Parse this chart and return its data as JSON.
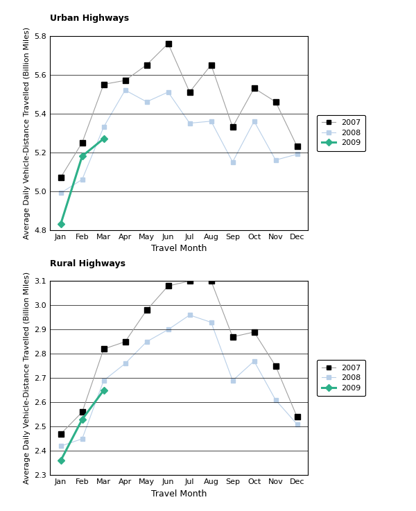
{
  "months": [
    "Jan",
    "Feb",
    "Mar",
    "Apr",
    "May",
    "Jun",
    "Jul",
    "Aug",
    "Sep",
    "Oct",
    "Nov",
    "Dec"
  ],
  "urban": {
    "ylabel": "Average Daily Vehicle-Distance Travelled (Billion Miles)",
    "xlabel": "Travel Month",
    "ylim": [
      4.8,
      5.8
    ],
    "yticks": [
      4.8,
      5.0,
      5.2,
      5.4,
      5.6,
      5.8
    ],
    "yticklabels": [
      "4.8",
      "5.0",
      "5.2",
      "5.4",
      "5.6",
      "5.8"
    ],
    "data_2007": [
      5.07,
      5.25,
      5.55,
      5.57,
      5.65,
      5.76,
      5.51,
      5.65,
      5.33,
      5.53,
      5.46,
      5.23
    ],
    "data_2008": [
      4.99,
      5.06,
      5.33,
      5.52,
      5.46,
      5.51,
      5.35,
      5.36,
      5.15,
      5.36,
      5.16,
      5.19
    ],
    "data_2009": [
      4.83,
      5.18,
      5.27,
      null,
      null,
      null,
      null,
      null,
      null,
      null,
      null,
      null
    ]
  },
  "rural": {
    "ylabel": "Average Daily Vehicle-Distance Travelled (Billion Miles)",
    "xlabel": "Travel Month",
    "ylim": [
      2.3,
      3.1
    ],
    "yticks": [
      2.3,
      2.4,
      2.5,
      2.6,
      2.7,
      2.8,
      2.9,
      3.0,
      3.1
    ],
    "yticklabels": [
      "2.3",
      "2.4",
      "2.5",
      "2.6",
      "2.7",
      "2.8",
      "2.9",
      "3.0",
      "3.1"
    ],
    "data_2007": [
      2.47,
      2.56,
      2.82,
      2.85,
      2.98,
      3.08,
      3.1,
      3.1,
      2.87,
      2.89,
      2.75,
      2.54
    ],
    "data_2008": [
      2.42,
      2.45,
      2.69,
      2.76,
      2.85,
      2.9,
      2.96,
      2.93,
      2.69,
      2.77,
      2.61,
      2.51
    ],
    "data_2009": [
      2.36,
      2.53,
      2.65,
      null,
      null,
      null,
      null,
      null,
      null,
      null,
      null,
      null
    ]
  },
  "title_urban": "Urban Highways",
  "title_rural": "Rural Highways",
  "color_2007": "#000000",
  "color_2008": "#b8cfe8",
  "color_2009": "#2db089",
  "line_color_2007": "#a0a0a0",
  "line_color_2008": "#b8cfe8",
  "line_color_2009": "#2db089",
  "marker_2007": "s",
  "marker_2008": "s",
  "marker_2009": "D",
  "markersize_2007": 6,
  "markersize_2008": 5,
  "markersize_2009": 5,
  "linewidth_2007": 0.8,
  "linewidth_2008": 0.8,
  "linewidth_2009": 2.2,
  "legend_labels": [
    "2007",
    "2008",
    "2009"
  ],
  "tick_fontsize": 8,
  "label_fontsize": 8,
  "xlabel_fontsize": 9,
  "title_fontsize": 9
}
